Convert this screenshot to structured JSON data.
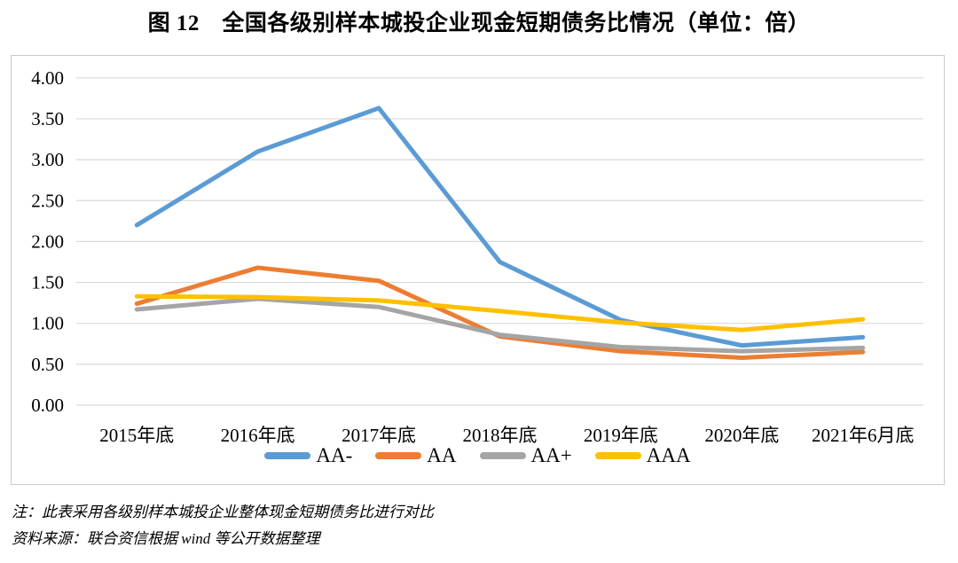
{
  "title": "图 12　全国各级别样本城投企业现金短期债务比情况（单位：倍）",
  "chart_data": {
    "type": "line",
    "title": "图 12　全国各级别样本城投企业现金短期债务比情况（单位：倍）",
    "xlabel": "",
    "ylabel": "",
    "unit": "倍",
    "categories": [
      "2015年底",
      "2016年底",
      "2017年底",
      "2018年底",
      "2019年底",
      "2020年底",
      "2021年6月底"
    ],
    "series": [
      {
        "name": "AA-",
        "color": "#5B9BD5",
        "values": [
          2.2,
          3.1,
          3.63,
          1.75,
          1.04,
          0.73,
          0.83
        ]
      },
      {
        "name": "AA",
        "color": "#ED7D31",
        "values": [
          1.24,
          1.68,
          1.52,
          0.84,
          0.66,
          0.58,
          0.65
        ]
      },
      {
        "name": "AA+",
        "color": "#A5A5A5",
        "values": [
          1.17,
          1.3,
          1.2,
          0.86,
          0.71,
          0.66,
          0.7
        ]
      },
      {
        "name": "AAA",
        "color": "#FFC000",
        "values": [
          1.33,
          1.32,
          1.28,
          1.15,
          1.01,
          0.92,
          1.05
        ]
      }
    ],
    "ylim": [
      0,
      4
    ],
    "ytick_step": 0.5,
    "ytick_labels": [
      "0.00",
      "0.50",
      "1.00",
      "1.50",
      "2.00",
      "2.50",
      "3.00",
      "3.50",
      "4.00"
    ],
    "grid": true,
    "gridline_color": "#D9D9D9",
    "legend_position": "bottom"
  },
  "notes": {
    "note": "注：此表采用各级别样本城投企业整体现金短期债务比进行对比",
    "source": "资料来源：联合资信根据 wind 等公开数据整理"
  }
}
